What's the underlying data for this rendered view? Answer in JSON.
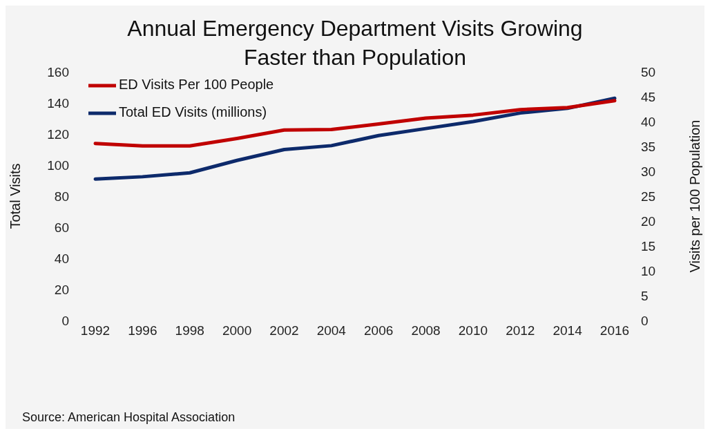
{
  "chart_data": {
    "type": "line",
    "title": "Annual Emergency Department Visits Growing Faster than Population",
    "ylabel": "Total Visits",
    "y2label": "Visits per 100 Population",
    "categories": [
      "1992",
      "1996",
      "1998",
      "2000",
      "2002",
      "2004",
      "2006",
      "2008",
      "2010",
      "2012",
      "2014",
      "2016"
    ],
    "series": [
      {
        "name": "Total ED Visits (millions)",
        "color": "#0d2a6b",
        "values": [
          91,
          92.5,
          95,
          103,
          110,
          112.5,
          119,
          123.5,
          128,
          133.5,
          136.5,
          143
        ]
      },
      {
        "name": "ED Visits Per 100 People",
        "color": "#c00000",
        "axis": "y2",
        "values": [
          35.6,
          35.1,
          35.1,
          36.6,
          38.3,
          38.4,
          39.5,
          40.7,
          41.3,
          42.4,
          42.8,
          44.2
        ]
      }
    ],
    "ylim": [
      0,
      160
    ],
    "yticks": [
      0,
      20,
      40,
      60,
      80,
      100,
      120,
      140,
      160
    ],
    "y2lim": [
      0,
      50
    ],
    "y2ticks": [
      0,
      5,
      10,
      15,
      20,
      25,
      30,
      35,
      40,
      45,
      50
    ],
    "grid": false,
    "legend": "top left",
    "marker": "none",
    "line_style": "solid",
    "annotations": [
      "Source: American Hospital Association"
    ]
  }
}
